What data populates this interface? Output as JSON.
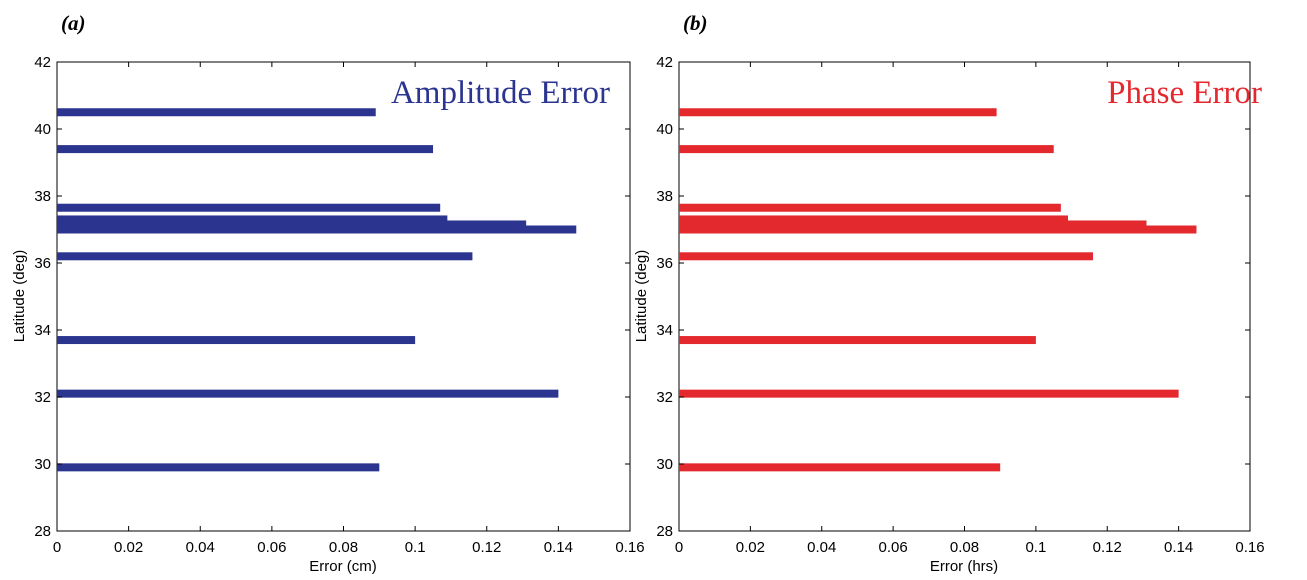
{
  "chart_data": [
    {
      "type": "bar",
      "orientation": "horizontal",
      "panel_label": "(a)",
      "title": "Amplitude Error",
      "xlabel": "Error (cm)",
      "ylabel": "Latitude (deg)",
      "xlim": [
        0,
        0.16
      ],
      "ylim": [
        28,
        42
      ],
      "xticks": [
        "0",
        "0.02",
        "0.04",
        "0.06",
        "0.08",
        "0.1",
        "0.12",
        "0.14",
        "0.16"
      ],
      "yticks": [
        "28",
        "30",
        "32",
        "34",
        "36",
        "38",
        "40",
        "42"
      ],
      "color": "#2b3590",
      "title_color": "#2b3590",
      "bars": [
        {
          "y": 40.5,
          "value": 0.089
        },
        {
          "y": 39.4,
          "value": 0.105
        },
        {
          "y": 37.65,
          "value": 0.107
        },
        {
          "y": 37.3,
          "value": 0.109
        },
        {
          "y": 37.15,
          "value": 0.131
        },
        {
          "y": 37.0,
          "value": 0.145
        },
        {
          "y": 36.2,
          "value": 0.116
        },
        {
          "y": 33.7,
          "value": 0.1
        },
        {
          "y": 32.1,
          "value": 0.14
        },
        {
          "y": 29.9,
          "value": 0.09
        }
      ]
    },
    {
      "type": "bar",
      "orientation": "horizontal",
      "panel_label": "(b)",
      "title": "Phase Error",
      "xlabel": "Error (hrs)",
      "ylabel": "Latitude (deg)",
      "xlim": [
        0,
        0.16
      ],
      "ylim": [
        28,
        42
      ],
      "xticks": [
        "0",
        "0.02",
        "0.04",
        "0.06",
        "0.08",
        "0.1",
        "0.12",
        "0.14",
        "0.16"
      ],
      "yticks": [
        "28",
        "30",
        "32",
        "34",
        "36",
        "38",
        "40",
        "42"
      ],
      "color": "#e3282e",
      "title_color": "#e3282e",
      "bars": [
        {
          "y": 40.5,
          "value": 0.089
        },
        {
          "y": 39.4,
          "value": 0.105
        },
        {
          "y": 37.65,
          "value": 0.107
        },
        {
          "y": 37.3,
          "value": 0.109
        },
        {
          "y": 37.15,
          "value": 0.131
        },
        {
          "y": 37.0,
          "value": 0.145
        },
        {
          "y": 36.2,
          "value": 0.116
        },
        {
          "y": 33.7,
          "value": 0.1
        },
        {
          "y": 32.1,
          "value": 0.14
        },
        {
          "y": 29.9,
          "value": 0.09
        }
      ]
    }
  ]
}
